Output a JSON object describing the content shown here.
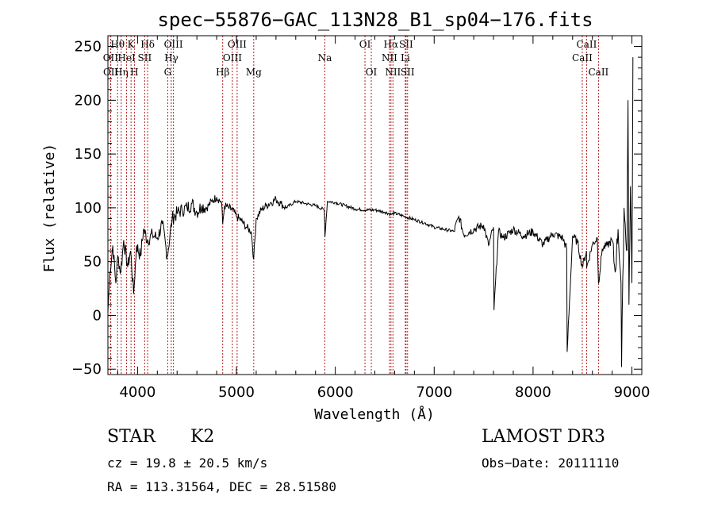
{
  "chart_data": {
    "type": "line",
    "title": "spec−55876−GAC_113N28_B1_sp04−176.fits",
    "xlabel": "Wavelength (Å)",
    "ylabel": "Flux (relative)",
    "xlim": [
      3700,
      9100
    ],
    "ylim": [
      -55,
      260
    ],
    "xticks": [
      4000,
      5000,
      6000,
      7000,
      8000,
      9000
    ],
    "xtick_labels": [
      "4000",
      "5000",
      "6000",
      "7000",
      "8000",
      "9000"
    ],
    "yticks": [
      -50,
      0,
      50,
      100,
      150,
      200,
      250
    ],
    "ytick_labels": [
      "−50",
      "0",
      "50",
      "100",
      "150",
      "200",
      "250"
    ],
    "series": [
      {
        "name": "flux",
        "x": [
          3700,
          3720,
          3750,
          3780,
          3800,
          3830,
          3860,
          3900,
          3930,
          3960,
          3990,
          4030,
          4060,
          4100,
          4150,
          4200,
          4250,
          4300,
          4350,
          4400,
          4450,
          4500,
          4550,
          4600,
          4650,
          4700,
          4750,
          4800,
          4850,
          4861,
          4880,
          4920,
          4960,
          5000,
          5050,
          5100,
          5150,
          5175,
          5200,
          5250,
          5300,
          5350,
          5400,
          5450,
          5500,
          5600,
          5700,
          5800,
          5890,
          5895,
          5920,
          6000,
          6100,
          6200,
          6300,
          6400,
          6500,
          6563,
          6600,
          6700,
          6800,
          6900,
          7000,
          7100,
          7200,
          7250,
          7300,
          7400,
          7500,
          7550,
          7600,
          7605,
          7650,
          7700,
          7800,
          7900,
          8000,
          8100,
          8200,
          8300,
          8340,
          8345,
          8400,
          8450,
          8498,
          8540,
          8542,
          8600,
          8650,
          8662,
          8700,
          8750,
          8800,
          8830,
          8860,
          8890,
          8895,
          8920,
          8950,
          8960,
          8970,
          8985,
          9000,
          9010
        ],
        "y": [
          3,
          40,
          65,
          30,
          55,
          40,
          70,
          45,
          60,
          20,
          65,
          55,
          80,
          70,
          75,
          72,
          85,
          55,
          90,
          95,
          98,
          100,
          104,
          96,
          102,
          100,
          106,
          110,
          105,
          85,
          102,
          100,
          98,
          92,
          88,
          82,
          78,
          52,
          90,
          98,
          102,
          105,
          108,
          104,
          100,
          106,
          104,
          102,
          98,
          73,
          106,
          105,
          102,
          99,
          98,
          98,
          96,
          94,
          95,
          92,
          89,
          86,
          82,
          80,
          78,
          92,
          75,
          80,
          84,
          65,
          82,
          5,
          78,
          72,
          80,
          74,
          78,
          66,
          76,
          72,
          62,
          -34,
          74,
          68,
          45,
          60,
          44,
          66,
          72,
          30,
          62,
          65,
          70,
          40,
          80,
          30,
          -48,
          100,
          60,
          200,
          10,
          120,
          30,
          240
        ]
      }
    ],
    "spectral_lines": [
      {
        "label": "Hθ",
        "wl": 3798,
        "row": 1
      },
      {
        "label": "OII",
        "wl": 3727,
        "row": 2
      },
      {
        "label": "OII",
        "wl": 3729,
        "row": 3
      },
      {
        "label": "Hη",
        "wl": 3835,
        "row": 3
      },
      {
        "label": "K",
        "wl": 3934,
        "row": 1
      },
      {
        "label": "HeI",
        "wl": 3889,
        "row": 2
      },
      {
        "label": "H",
        "wl": 3968,
        "row": 3
      },
      {
        "label": "SII",
        "wl": 4072,
        "row": 2
      },
      {
        "label": "Hδ",
        "wl": 4102,
        "row": 1
      },
      {
        "label": "OIII",
        "wl": 4363,
        "row": 1
      },
      {
        "label": "Hγ",
        "wl": 4341,
        "row": 2
      },
      {
        "label": "G",
        "wl": 4305,
        "row": 3
      },
      {
        "label": "OIII",
        "wl": 5007,
        "row": 1
      },
      {
        "label": "OIII",
        "wl": 4959,
        "row": 2
      },
      {
        "label": "Hβ",
        "wl": 4861,
        "row": 3
      },
      {
        "label": "Mg",
        "wl": 5175,
        "row": 3
      },
      {
        "label": "Na",
        "wl": 5894,
        "row": 2
      },
      {
        "label": "OI",
        "wl": 6300,
        "row": 1
      },
      {
        "label": "OI",
        "wl": 6364,
        "row": 3
      },
      {
        "label": "Hα",
        "wl": 6563,
        "row": 1
      },
      {
        "label": "NII",
        "wl": 6548,
        "row": 2
      },
      {
        "label": "NII",
        "wl": 6583,
        "row": 3
      },
      {
        "label": "SII",
        "wl": 6716,
        "row": 1
      },
      {
        "label": "Li",
        "wl": 6708,
        "row": 2
      },
      {
        "label": "SII",
        "wl": 6731,
        "row": 3
      },
      {
        "label": "CaII",
        "wl": 8542,
        "row": 1
      },
      {
        "label": "CaII",
        "wl": 8498,
        "row": 2
      },
      {
        "label": "CaII",
        "wl": 8662,
        "row": 3
      }
    ],
    "grid": false,
    "legend": "none"
  },
  "info": {
    "object_class": "STAR",
    "subclass": "K2",
    "survey": "LAMOST DR3",
    "redshift_text": "cz = 19.8 ± 20.5 km/s",
    "obs_date_text": "Obs−Date: 20111110",
    "coords_text": "RA = 113.31564, DEC =  28.51580"
  }
}
